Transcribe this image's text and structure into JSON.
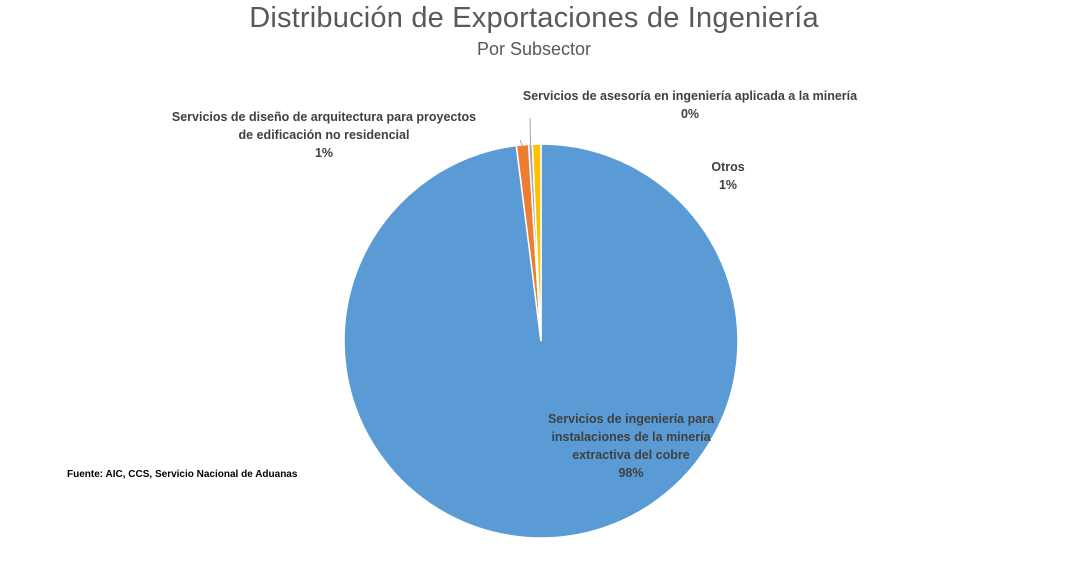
{
  "chart_data": {
    "type": "pie",
    "title": "Distribución de Exportaciones de Ingeniería",
    "subtitle": "Por Subsector",
    "slices": [
      {
        "label_lines": [
          "Servicios de ingeniería para",
          "instalaciones de la minería",
          "extractiva del cobre"
        ],
        "label": "Servicios de ingeniería para instalaciones de la minería extractiva del cobre",
        "value": 98,
        "value_label": "98%",
        "color": "#5B9BD5"
      },
      {
        "label_lines": [
          "Servicios de diseño de arquitectura para proyectos",
          "de edificación no residencial"
        ],
        "label": "Servicios de diseño de arquitectura para proyectos de edificación no residencial",
        "value": 1.0,
        "value_label": "1%",
        "color": "#ED7D31"
      },
      {
        "label_lines": [
          "Servicios de asesoría en ingeniería aplicada a la minería"
        ],
        "label": "Servicios de asesoría en ingeniería aplicada a la minería",
        "value": 0.3,
        "value_label": "0%",
        "color": "#A5A5A5"
      },
      {
        "label_lines": [
          "Otros"
        ],
        "label": "Otros",
        "value": 0.7,
        "value_label": "1%",
        "color": "#FFC000"
      }
    ],
    "legend": "none",
    "label_style": "outside-callouts"
  },
  "source": "Fuente: AIC, CCS, Servicio Nacional de Aduanas"
}
